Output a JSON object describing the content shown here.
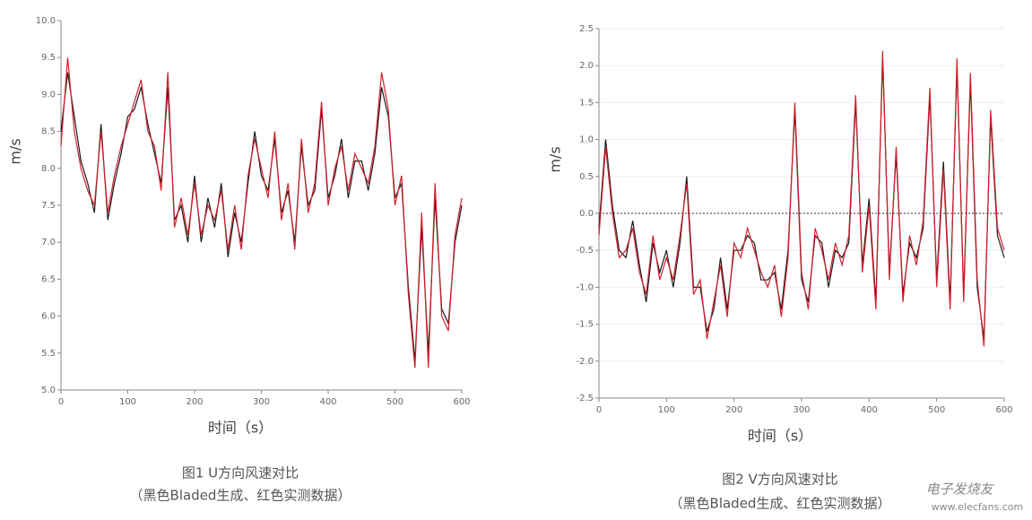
{
  "chart_data": [
    {
      "type": "line",
      "x_label": "时间（s）",
      "y_label": "m/s",
      "caption": [
        "图1 U方向风速对比",
        "（黑色Bladed生成、红色实测数据）"
      ],
      "xlim": [
        0,
        600
      ],
      "xticks": [
        0,
        100,
        200,
        300,
        400,
        500,
        600
      ],
      "ylim": [
        5,
        10
      ],
      "yticks": [
        {
          "value": 5,
          "label": "5.0"
        },
        5.5,
        {
          "value": 6,
          "label": "6.0"
        },
        6.5,
        {
          "value": 7,
          "label": "7.0"
        },
        7.5,
        {
          "value": 8,
          "label": "8.0"
        },
        8.5,
        {
          "value": 9,
          "label": "9.0"
        },
        9.5,
        {
          "value": 10,
          "label": "10.0"
        }
      ],
      "grid": false,
      "zero_line": false,
      "x": [
        0,
        10,
        20,
        30,
        40,
        50,
        60,
        70,
        80,
        90,
        100,
        110,
        120,
        130,
        140,
        150,
        160,
        170,
        180,
        190,
        200,
        210,
        220,
        230,
        240,
        250,
        260,
        270,
        280,
        290,
        300,
        310,
        320,
        330,
        340,
        350,
        360,
        370,
        380,
        390,
        400,
        410,
        420,
        430,
        440,
        450,
        460,
        470,
        480,
        490,
        500,
        510,
        520,
        530,
        540,
        550,
        560,
        570,
        580,
        590,
        600
      ],
      "series": [
        {
          "color": "#1a1a1a",
          "values": [
            8.5,
            9.3,
            8.7,
            8.1,
            7.8,
            7.4,
            8.6,
            7.3,
            7.8,
            8.2,
            8.7,
            8.8,
            9.1,
            8.6,
            8.2,
            7.8,
            9.1,
            7.3,
            7.5,
            7.0,
            7.9,
            7.0,
            7.6,
            7.2,
            7.8,
            6.8,
            7.4,
            7.0,
            7.8,
            8.5,
            7.9,
            7.7,
            8.4,
            7.4,
            7.7,
            7.0,
            8.3,
            7.5,
            7.7,
            8.8,
            7.6,
            7.9,
            8.4,
            7.6,
            8.1,
            8.1,
            7.7,
            8.2,
            9.1,
            8.7,
            7.6,
            7.8,
            6.4,
            5.4,
            7.2,
            5.5,
            7.6,
            6.1,
            5.9,
            7.0,
            7.5
          ]
        },
        {
          "color": "#d0202a",
          "values": [
            8.3,
            9.5,
            8.5,
            8.0,
            7.7,
            7.5,
            8.5,
            7.4,
            7.9,
            8.3,
            8.6,
            8.9,
            9.2,
            8.5,
            8.3,
            7.7,
            9.3,
            7.2,
            7.6,
            7.1,
            7.8,
            7.1,
            7.5,
            7.3,
            7.7,
            6.9,
            7.5,
            6.9,
            7.9,
            8.4,
            8.0,
            7.6,
            8.5,
            7.3,
            7.8,
            6.9,
            8.4,
            7.4,
            7.8,
            8.9,
            7.5,
            8.0,
            8.3,
            7.7,
            8.2,
            8.0,
            7.8,
            8.3,
            9.3,
            8.8,
            7.5,
            7.9,
            6.3,
            5.3,
            7.4,
            5.3,
            7.8,
            6.0,
            5.8,
            7.1,
            7.6
          ]
        }
      ]
    },
    {
      "type": "line",
      "x_label": "时间（s）",
      "y_label": "m/s",
      "caption": [
        "图2 V方向风速对比",
        "（黑色Bladed生成、红色实测数据）"
      ],
      "xlim": [
        0,
        600
      ],
      "xticks": [
        0,
        100,
        200,
        300,
        400,
        500,
        600
      ],
      "ylim": [
        -2.5,
        2.5
      ],
      "yticks": [
        -2.5,
        {
          "value": -2,
          "label": "-2.0"
        },
        -1.5,
        {
          "value": -1,
          "label": "-1.0"
        },
        -0.5,
        {
          "value": 0,
          "label": "0.0"
        },
        0.5,
        {
          "value": 1,
          "label": "1.0"
        },
        1.5,
        {
          "value": 2,
          "label": "2.0"
        },
        2.5
      ],
      "grid": true,
      "zero_line": true,
      "x": [
        0,
        10,
        20,
        30,
        40,
        50,
        60,
        70,
        80,
        90,
        100,
        110,
        120,
        130,
        140,
        150,
        160,
        170,
        180,
        190,
        200,
        210,
        220,
        230,
        240,
        250,
        260,
        270,
        280,
        290,
        300,
        310,
        320,
        330,
        340,
        350,
        360,
        370,
        380,
        390,
        400,
        410,
        420,
        430,
        440,
        450,
        460,
        470,
        480,
        490,
        500,
        510,
        520,
        530,
        540,
        550,
        560,
        570,
        580,
        590,
        600
      ],
      "series": [
        {
          "color": "#1a1a1a",
          "values": [
            -0.2,
            1.0,
            0.1,
            -0.5,
            -0.6,
            -0.1,
            -0.7,
            -1.2,
            -0.4,
            -0.8,
            -0.5,
            -1.0,
            -0.4,
            0.5,
            -1.0,
            -1.0,
            -1.6,
            -1.3,
            -0.6,
            -1.3,
            -0.5,
            -0.5,
            -0.3,
            -0.4,
            -0.9,
            -0.9,
            -0.8,
            -1.3,
            -0.5,
            1.4,
            -0.9,
            -1.2,
            -0.3,
            -0.4,
            -1.0,
            -0.5,
            -0.6,
            -0.4,
            1.5,
            -0.7,
            0.2,
            -1.2,
            2.1,
            -0.8,
            0.8,
            -1.1,
            -0.4,
            -0.6,
            -0.2,
            1.6,
            -0.9,
            0.7,
            -1.2,
            2.0,
            -1.1,
            1.8,
            -1.0,
            -1.7,
            1.3,
            -0.3,
            -0.6
          ]
        },
        {
          "color": "#d0202a",
          "values": [
            -0.3,
            0.9,
            0.0,
            -0.6,
            -0.5,
            -0.2,
            -0.8,
            -1.1,
            -0.3,
            -0.9,
            -0.6,
            -0.9,
            -0.3,
            0.4,
            -1.1,
            -0.9,
            -1.7,
            -1.2,
            -0.7,
            -1.4,
            -0.4,
            -0.6,
            -0.2,
            -0.5,
            -0.8,
            -1.0,
            -0.7,
            -1.4,
            -0.6,
            1.5,
            -0.8,
            -1.3,
            -0.2,
            -0.5,
            -0.9,
            -0.4,
            -0.7,
            -0.3,
            1.6,
            -0.8,
            0.1,
            -1.3,
            2.2,
            -0.9,
            0.9,
            -1.2,
            -0.3,
            -0.7,
            -0.1,
            1.7,
            -1.0,
            0.6,
            -1.3,
            2.1,
            -1.2,
            1.9,
            -0.9,
            -1.8,
            1.4,
            -0.2,
            -0.5
          ]
        }
      ]
    }
  ],
  "watermark": {
    "text": "电子发烧友",
    "url": "www.elecfans.com"
  }
}
